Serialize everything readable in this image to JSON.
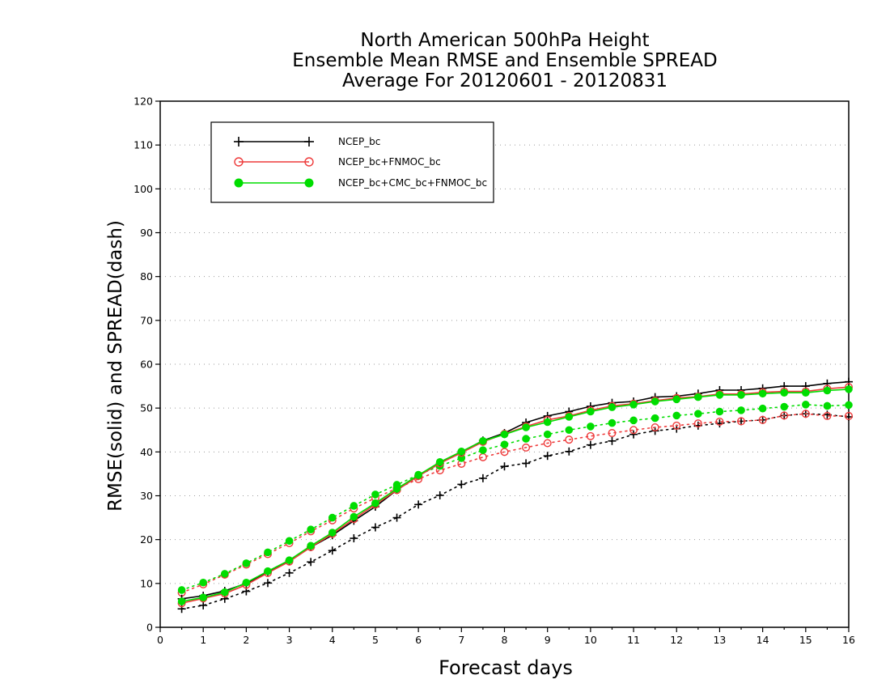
{
  "chart_data": {
    "type": "line",
    "title": [
      "North American 500hPa Height",
      "Ensemble Mean RMSE and Ensemble SPREAD",
      "Average For 20120601 - 20120831"
    ],
    "xlabel": "Forecast days",
    "ylabel": "RMSE(solid) and SPREAD(dash)",
    "xlim": [
      0,
      16
    ],
    "ylim": [
      0,
      120
    ],
    "xticks": [
      0,
      1,
      2,
      3,
      4,
      5,
      6,
      7,
      8,
      9,
      10,
      11,
      12,
      13,
      14,
      15,
      16
    ],
    "yticks": [
      0,
      10,
      20,
      30,
      40,
      50,
      60,
      70,
      80,
      90,
      100,
      110,
      120
    ],
    "grid": "horizontal dotted",
    "legend_position": "top-left",
    "x": [
      0.5,
      1,
      1.5,
      2,
      2.5,
      3,
      3.5,
      4,
      4.5,
      5,
      5.5,
      6,
      6.5,
      7,
      7.5,
      8,
      8.5,
      9,
      9.5,
      10,
      10.5,
      11,
      11.5,
      12,
      12.5,
      13,
      13.5,
      14,
      14.5,
      15,
      15.5,
      16
    ],
    "series": [
      {
        "name": "NCEP_bc",
        "color": "#000000",
        "marker": "plus",
        "rmse": [
          6.5,
          7.2,
          8.3,
          10.0,
          12.6,
          15.2,
          18.3,
          21.0,
          24.3,
          27.5,
          31.3,
          34.5,
          37.4,
          40.0,
          42.6,
          44.3,
          46.7,
          48.2,
          49.2,
          50.4,
          51.2,
          51.5,
          52.5,
          52.7,
          53.3,
          54.1,
          54.1,
          54.5,
          55.0,
          55.0,
          55.6,
          56.0
        ],
        "spread": [
          4.2,
          5.0,
          6.5,
          8.2,
          10.1,
          12.4,
          14.9,
          17.5,
          20.3,
          22.8,
          25.0,
          28.0,
          30.1,
          32.6,
          34.0,
          36.7,
          37.4,
          39.1,
          40.1,
          41.6,
          42.5,
          44.0,
          44.8,
          45.3,
          46.0,
          46.5,
          47.0,
          47.3,
          48.3,
          48.7,
          48.5,
          48.0
        ]
      },
      {
        "name": "NCEP_bc+FNMOC_bc",
        "color": "#ee3b3b",
        "marker": "open-circle",
        "rmse": [
          5.5,
          6.6,
          7.7,
          9.7,
          12.4,
          15.0,
          18.3,
          21.3,
          24.7,
          28.0,
          31.3,
          34.5,
          37.4,
          39.8,
          42.3,
          44.1,
          45.8,
          47.3,
          48.2,
          49.5,
          50.5,
          51.0,
          51.7,
          52.3,
          52.6,
          53.2,
          53.2,
          53.6,
          53.8,
          53.8,
          54.4,
          54.8
        ],
        "spread": [
          7.9,
          9.8,
          12.0,
          14.3,
          16.7,
          19.2,
          21.9,
          24.4,
          27.1,
          29.5,
          31.7,
          33.8,
          35.8,
          37.3,
          38.8,
          40.0,
          41.0,
          42.0,
          42.8,
          43.6,
          44.3,
          45.0,
          45.6,
          46.0,
          46.5,
          46.9,
          47.0,
          47.3,
          48.3,
          48.7,
          48.2,
          48.2
        ]
      },
      {
        "name": "NCEP_bc+CMC_bc+FNMOC_bc",
        "color": "#00dd00",
        "marker": "filled-circle",
        "rmse": [
          5.9,
          6.8,
          8.0,
          10.2,
          12.8,
          15.3,
          18.6,
          21.6,
          25.2,
          28.3,
          31.6,
          34.7,
          37.7,
          40.1,
          42.5,
          44.0,
          45.6,
          46.8,
          48.0,
          49.2,
          50.2,
          50.8,
          51.5,
          52.0,
          52.5,
          53.0,
          53.0,
          53.3,
          53.5,
          53.5,
          54.0,
          54.3
        ],
        "spread": [
          8.5,
          10.2,
          12.2,
          14.6,
          17.1,
          19.7,
          22.3,
          25.0,
          27.7,
          30.3,
          32.5,
          34.8,
          36.8,
          38.6,
          40.4,
          41.7,
          43.0,
          44.0,
          45.0,
          45.8,
          46.6,
          47.2,
          47.7,
          48.3,
          48.7,
          49.2,
          49.5,
          49.9,
          50.3,
          50.8,
          50.5,
          50.7
        ]
      }
    ]
  }
}
